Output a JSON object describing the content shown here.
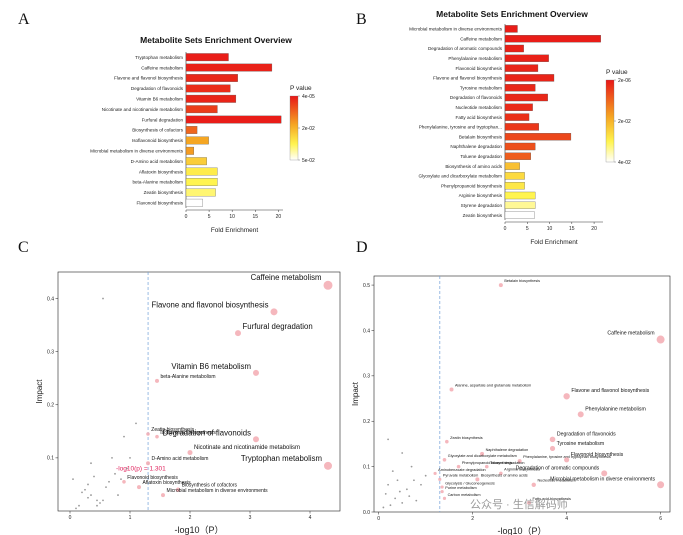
{
  "panels": {
    "a": "A",
    "b": "B",
    "c": "C",
    "d": "D"
  },
  "watermark": "公众号 · 生信解码师",
  "colors": {
    "red": "#e81717",
    "orange": "#f5a623",
    "yellow": "#fff44f",
    "white": "#ffffff",
    "point_big": "#f3aab2",
    "point_small": "#9a9a9a",
    "threshold": "#e0245e",
    "vline": "#6f9fd8"
  },
  "chart_data": [
    {
      "type": "bar",
      "panel": "A",
      "title": "Metabolite Sets Enrichment Overview",
      "xlabel": "Fold Enrichment",
      "ylabel": "",
      "xlim": [
        0,
        21
      ],
      "xticks": [
        "0",
        "5",
        "10",
        "15",
        "20"
      ],
      "legend": {
        "title": "P value",
        "labels": [
          "4e-05",
          "2e-02",
          "5e-02"
        ]
      },
      "categories": [
        "Tryptophan metabolism",
        "Caffeine metabolism",
        "Flavone and flavonol biosynthesis",
        "Degradation of flavonoids",
        "Vitamin B6 metabolism",
        "Nicotinate and nicotinamide metabolism",
        "Furfural degradation",
        "Biosynthesis of cofactors",
        "Isoflavonoid biosynthesis",
        "Microbial metabolism in diverse environments",
        "D-Amino acid metabolism",
        "Aflatoxin biosynthesis",
        "beta-Alanine metabolism",
        "Zeatin biosynthesis",
        "Flavonoid biosynthesis"
      ],
      "values": [
        9.2,
        18.6,
        11.2,
        9.6,
        10.8,
        6.8,
        20.6,
        2.4,
        4.9,
        1.7,
        4.5,
        6.8,
        6.8,
        6.4,
        3.6
      ],
      "pvalue_fraction": [
        0.02,
        0.03,
        0.05,
        0.07,
        0.04,
        0.12,
        0.02,
        0.25,
        0.45,
        0.42,
        0.6,
        0.72,
        0.75,
        0.8,
        1.0
      ]
    },
    {
      "type": "bar",
      "panel": "B",
      "title": "Metabolite Sets Enrichment Overview",
      "xlabel": "Fold Enrichment",
      "ylabel": "",
      "xlim": [
        0,
        22
      ],
      "xticks": [
        "0",
        "5",
        "10",
        "15",
        "20"
      ],
      "legend": {
        "title": "P value",
        "labels": [
          "2e-06",
          "2e-02",
          "4e-02"
        ]
      },
      "categories": [
        "Microbial metabolism in diverse environments",
        "Caffeine metabolism",
        "Degradation of aromatic compounds",
        "Phenylalanine metabolism",
        "Flavonoid biosynthesis",
        "Flavone and flavonol biosynthesis",
        "Tyrosine metabolism",
        "Degradation of flavonoids",
        "Nucleotide metabolism",
        "Fatty acid biosynthesis",
        "Phenylalanine, tyrosine and tryptophan...",
        "Betalain biosynthesis",
        "Naphthalene degradation",
        "Toluene degradation",
        "Biosynthesis of amino acids",
        "Glyoxylate and dicarboxylate metabolism",
        "Phenylpropanoid biosynthesis",
        "Arginine biosynthesis",
        "Styrene degradation",
        "Zeatin biosynthesis"
      ],
      "values": [
        2.8,
        21.5,
        4.2,
        9.8,
        7.4,
        11.0,
        6.8,
        9.6,
        6.2,
        5.4,
        7.6,
        14.8,
        6.8,
        5.8,
        3.3,
        4.4,
        4.4,
        6.8,
        6.8,
        6.6
      ],
      "pvalue_fraction": [
        0.02,
        0.02,
        0.03,
        0.03,
        0.04,
        0.04,
        0.05,
        0.05,
        0.06,
        0.08,
        0.1,
        0.15,
        0.18,
        0.22,
        0.55,
        0.65,
        0.7,
        0.75,
        0.85,
        1.0
      ]
    },
    {
      "type": "scatter",
      "panel": "C",
      "xlabel": "-log10（P）",
      "ylabel": "Impact",
      "xlim": [
        -0.2,
        4.5
      ],
      "ylim": [
        0,
        0.45
      ],
      "xticks": [
        "0",
        "1",
        "2",
        "3",
        "4"
      ],
      "yticks": [
        "0.1",
        "0.2",
        "0.3",
        "0.4"
      ],
      "threshold_x": 1.301,
      "threshold_label": "-log10(p) = 1.301",
      "labeled_points": [
        {
          "label": "Caffeine metabolism",
          "x": 4.3,
          "y": 0.425,
          "size": 4.5
        },
        {
          "label": "Flavone and flavonol biosynthesis",
          "x": 3.4,
          "y": 0.375,
          "size": 3.5
        },
        {
          "label": "Furfural degradation",
          "x": 2.8,
          "y": 0.335,
          "size": 3
        },
        {
          "label": "Vitamin B6 metabolism",
          "x": 3.1,
          "y": 0.26,
          "size": 3
        },
        {
          "label": "beta-Alanine metabolism",
          "x": 1.45,
          "y": 0.245,
          "size": 2
        },
        {
          "label": "Zeatin biosynthesis",
          "x": 1.3,
          "y": 0.145,
          "size": 1.8
        },
        {
          "label": "Isoflavonoid biosynthesis",
          "x": 1.45,
          "y": 0.14,
          "size": 1.8
        },
        {
          "label": "Degradation of flavonoids",
          "x": 3.1,
          "y": 0.135,
          "size": 3
        },
        {
          "label": "Nicotinate and nicotinamide metabolism",
          "x": 2.0,
          "y": 0.11,
          "size": 2.5
        },
        {
          "label": "Tryptophan metabolism",
          "x": 4.3,
          "y": 0.085,
          "size": 4
        },
        {
          "label": "D-Amino acid metabolism",
          "x": 1.3,
          "y": 0.09,
          "size": 2
        },
        {
          "label": "Flavonoid biosynthesis",
          "x": 0.9,
          "y": 0.055,
          "size": 1.8
        },
        {
          "label": "Aflatoxin biosynthesis",
          "x": 1.15,
          "y": 0.045,
          "size": 2
        },
        {
          "label": "Biosynthesis of cofactors",
          "x": 1.8,
          "y": 0.04,
          "size": 2.2
        },
        {
          "label": "Microbial metabolism in diverse environments",
          "x": 1.55,
          "y": 0.03,
          "size": 2
        }
      ],
      "minor_points": [
        [
          0.55,
          0.4
        ],
        [
          0.7,
          0.1
        ],
        [
          0.35,
          0.09
        ],
        [
          0.4,
          0.065
        ],
        [
          0.6,
          0.045
        ],
        [
          0.2,
          0.035
        ],
        [
          0.3,
          0.025
        ],
        [
          0.45,
          0.02
        ],
        [
          0.5,
          0.015
        ],
        [
          0.15,
          0.01
        ],
        [
          0.8,
          0.03
        ],
        [
          0.65,
          0.055
        ],
        [
          0.25,
          0.04
        ],
        [
          1.0,
          0.1
        ],
        [
          0.95,
          0.08
        ],
        [
          0.75,
          0.07
        ],
        [
          1.1,
          0.165
        ],
        [
          0.9,
          0.14
        ],
        [
          0.1,
          0.005
        ],
        [
          0.35,
          0.03
        ],
        [
          0.55,
          0.02
        ],
        [
          0.05,
          0.06
        ],
        [
          0.3,
          0.05
        ],
        [
          0.85,
          0.06
        ],
        [
          0.45,
          0.01
        ]
      ]
    },
    {
      "type": "scatter",
      "panel": "D",
      "xlabel": "-log10（P）",
      "ylabel": "Impact",
      "xlim": [
        -0.1,
        6.2
      ],
      "ylim": [
        0,
        0.52
      ],
      "xticks": [
        "0",
        "2",
        "4",
        "6"
      ],
      "yticks": [
        "0.0",
        "0.1",
        "0.2",
        "0.3",
        "0.4",
        "0.5"
      ],
      "labeled_points": [
        {
          "label": "Betalain biosynthesis",
          "x": 2.6,
          "y": 0.5,
          "size": 2
        },
        {
          "label": "Caffeine metabolism",
          "x": 6.0,
          "y": 0.38,
          "size": 4
        },
        {
          "label": "Alanine, aspartate and glutamate metabolism",
          "x": 1.55,
          "y": 0.27,
          "size": 2
        },
        {
          "label": "Flavone and flavonol biosynthesis",
          "x": 4.0,
          "y": 0.255,
          "size": 3.2
        },
        {
          "label": "Phenylalanine metabolism",
          "x": 4.3,
          "y": 0.215,
          "size": 3
        },
        {
          "label": "Zeatin biosynthesis",
          "x": 1.45,
          "y": 0.155,
          "size": 1.8
        },
        {
          "label": "Degradation of flavonoids",
          "x": 3.7,
          "y": 0.16,
          "size": 2.8
        },
        {
          "label": "Tyrosine metabolism",
          "x": 3.7,
          "y": 0.14,
          "size": 2.6
        },
        {
          "label": "Naphthalene degradation",
          "x": 2.2,
          "y": 0.128,
          "size": 2
        },
        {
          "label": "Glyoxylate and dicarboxylate metabolism",
          "x": 1.4,
          "y": 0.115,
          "size": 1.8
        },
        {
          "label": "Phenylalanine, tyrosine and tryptophan biosynthesis",
          "x": 3.0,
          "y": 0.112,
          "size": 2
        },
        {
          "label": "Flavonoid biosynthesis",
          "x": 4.0,
          "y": 0.115,
          "size": 2.6
        },
        {
          "label": "Phenylpropanoid biosynthesis",
          "x": 1.7,
          "y": 0.1,
          "size": 1.8
        },
        {
          "label": "Toluene degradation",
          "x": 2.3,
          "y": 0.1,
          "size": 1.8
        },
        {
          "label": "Aminobenzoate degradation",
          "x": 1.2,
          "y": 0.085,
          "size": 1.6
        },
        {
          "label": "Arginine biosynthesis",
          "x": 2.6,
          "y": 0.085,
          "size": 1.8
        },
        {
          "label": "Pyruvate metabolism",
          "x": 1.3,
          "y": 0.072,
          "size": 1.6
        },
        {
          "label": "Biosynthesis of amino acids",
          "x": 2.1,
          "y": 0.072,
          "size": 2
        },
        {
          "label": "Degradation of aromatic compounds",
          "x": 4.8,
          "y": 0.085,
          "size": 3
        },
        {
          "label": "Nucleotide metabolism",
          "x": 3.3,
          "y": 0.06,
          "size": 2.2
        },
        {
          "label": "Glycolysis / Gluconeogenesis",
          "x": 1.35,
          "y": 0.055,
          "size": 1.6
        },
        {
          "label": "Microbial metabolism in diverse environments",
          "x": 6.0,
          "y": 0.06,
          "size": 3.5
        },
        {
          "label": "Purine metabolism",
          "x": 1.35,
          "y": 0.045,
          "size": 1.6
        },
        {
          "label": "Carbon metabolism",
          "x": 1.4,
          "y": 0.03,
          "size": 1.6
        },
        {
          "label": "Fatty acid biosynthesis",
          "x": 3.2,
          "y": 0.02,
          "size": 2
        }
      ],
      "minor_points": [
        [
          0.2,
          0.16
        ],
        [
          0.5,
          0.13
        ],
        [
          0.7,
          0.1
        ],
        [
          0.3,
          0.09
        ],
        [
          0.4,
          0.07
        ],
        [
          0.2,
          0.06
        ],
        [
          0.6,
          0.05
        ],
        [
          0.15,
          0.04
        ],
        [
          0.35,
          0.03
        ],
        [
          0.5,
          0.02
        ],
        [
          0.8,
          0.025
        ],
        [
          0.25,
          0.015
        ],
        [
          0.9,
          0.06
        ],
        [
          1.0,
          0.08
        ],
        [
          0.1,
          0.01
        ],
        [
          0.45,
          0.045
        ],
        [
          0.65,
          0.035
        ],
        [
          0.75,
          0.07
        ]
      ]
    }
  ]
}
